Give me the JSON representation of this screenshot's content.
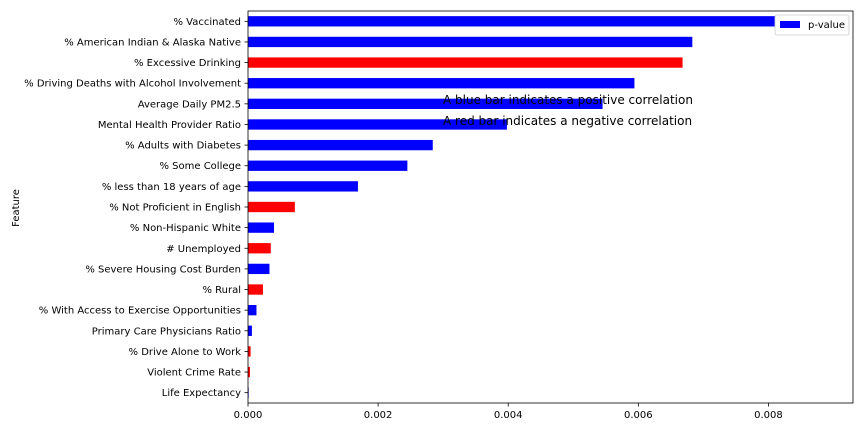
{
  "chart_data": {
    "type": "bar",
    "orientation": "horizontal",
    "ylabel": "Feature",
    "categories": [
      "Life Expectancy",
      "Violent Crime Rate",
      "% Drive Alone to Work",
      "Primary Care Physicians Ratio",
      "% With Access to Exercise Opportunities",
      "% Rural",
      "% Severe Housing Cost Burden",
      "# Unemployed",
      "% Non-Hispanic White",
      "% Not Proficient in English",
      "% less than 18 years of age",
      "% Some College",
      "% Adults with Diabetes",
      "Mental Health Provider Ratio",
      "Average Daily PM2.5",
      "% Driving Deaths with Alcohol Involvement",
      "% Excessive Drinking",
      "% American Indian & Alaska Native",
      "% Vaccinated"
    ],
    "series": [
      {
        "name": "p-value",
        "values": [
          1e-05,
          3e-05,
          4e-05,
          6e-05,
          0.00013,
          0.00023,
          0.00033,
          0.00035,
          0.0004,
          0.00072,
          0.00169,
          0.00245,
          0.00284,
          0.00398,
          0.00545,
          0.00594,
          0.00668,
          0.00683,
          0.00885
        ],
        "bar_colors": [
          "#0000ff",
          "#ff0000",
          "#ff0000",
          "#0000ff",
          "#0000ff",
          "#ff0000",
          "#0000ff",
          "#ff0000",
          "#0000ff",
          "#ff0000",
          "#0000ff",
          "#0000ff",
          "#0000ff",
          "#0000ff",
          "#0000ff",
          "#0000ff",
          "#ff0000",
          "#0000ff",
          "#0000ff"
        ]
      }
    ],
    "xlim": [
      0,
      0.0093
    ],
    "xticks": [
      "0.000",
      "0.002",
      "0.004",
      "0.006",
      "0.008"
    ],
    "xtick_values": [
      0,
      0.002,
      0.004,
      0.006,
      0.008
    ],
    "legend": {
      "label": "p-value",
      "color": "#0000ff",
      "placement": "top-right"
    },
    "annotations": [
      "A blue bar indicates a positive correlation",
      "A red bar indicates a negative correlation"
    ],
    "grid": false
  }
}
